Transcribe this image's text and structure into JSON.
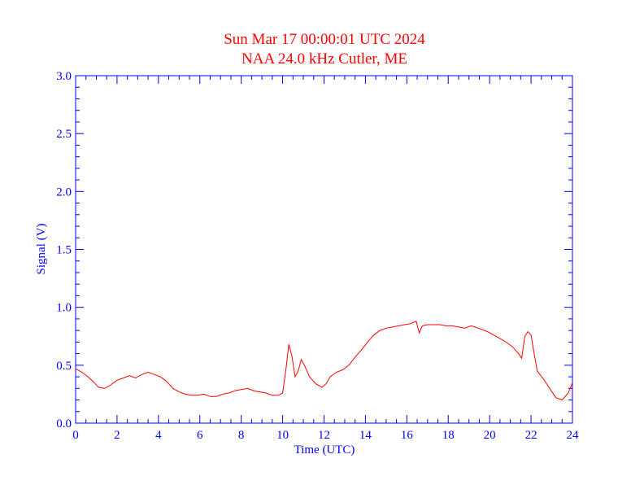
{
  "chart_data": {
    "type": "line",
    "title": "Sun Mar 17 00:00:01 UTC 2024",
    "subtitle": "NAA 24.0 kHz Cutler, ME",
    "xlabel": "Time (UTC)",
    "ylabel": "Signal (V)",
    "xlim": [
      0,
      24
    ],
    "ylim": [
      0,
      3.0
    ],
    "x_ticks": [
      0,
      2,
      4,
      6,
      8,
      10,
      12,
      14,
      16,
      18,
      20,
      22,
      24
    ],
    "x_tick_labels": [
      "0",
      "2",
      "4",
      "6",
      "8",
      "10",
      "12",
      "14",
      "16",
      "18",
      "20",
      "22",
      "24"
    ],
    "y_ticks": [
      0,
      0.5,
      1.0,
      1.5,
      2.0,
      2.5,
      3.0
    ],
    "y_tick_labels": [
      "0.0",
      "0.5",
      "1.0",
      "1.5",
      "2.0",
      "2.5",
      "3.0"
    ],
    "grid": false,
    "colors": {
      "axis": "#0000ff",
      "title": "#ff0000",
      "series": "#ff0000"
    },
    "series": [
      {
        "x": [
          0.0,
          0.3,
          0.6,
          0.9,
          1.1,
          1.4,
          1.7,
          2.0,
          2.3,
          2.6,
          2.9,
          3.2,
          3.5,
          3.8,
          4.1,
          4.4,
          4.7,
          5.0,
          5.3,
          5.6,
          5.9,
          6.2,
          6.5,
          6.8,
          7.1,
          7.4,
          7.7,
          8.0,
          8.3,
          8.6,
          8.9,
          9.2,
          9.5,
          9.8,
          10.0,
          10.15,
          10.3,
          10.45,
          10.6,
          10.75,
          10.9,
          11.05,
          11.3,
          11.6,
          11.9,
          12.1,
          12.3,
          12.6,
          12.9,
          13.2,
          13.5,
          13.8,
          14.1,
          14.4,
          14.7,
          15.0,
          15.3,
          15.6,
          15.9,
          16.2,
          16.45,
          16.6,
          16.75,
          17.0,
          17.3,
          17.6,
          17.9,
          18.2,
          18.5,
          18.8,
          19.1,
          19.3,
          19.6,
          19.9,
          20.2,
          20.5,
          20.8,
          21.1,
          21.4,
          21.55,
          21.7,
          21.85,
          22.0,
          22.15,
          22.3,
          22.6,
          22.9,
          23.2,
          23.5,
          23.8,
          24.0
        ],
        "values": [
          0.47,
          0.44,
          0.4,
          0.35,
          0.31,
          0.3,
          0.33,
          0.37,
          0.39,
          0.41,
          0.39,
          0.42,
          0.44,
          0.42,
          0.4,
          0.36,
          0.3,
          0.27,
          0.25,
          0.24,
          0.24,
          0.25,
          0.23,
          0.23,
          0.25,
          0.26,
          0.28,
          0.29,
          0.3,
          0.28,
          0.27,
          0.26,
          0.24,
          0.24,
          0.26,
          0.45,
          0.68,
          0.58,
          0.4,
          0.45,
          0.55,
          0.5,
          0.4,
          0.34,
          0.31,
          0.34,
          0.4,
          0.44,
          0.46,
          0.5,
          0.57,
          0.63,
          0.7,
          0.76,
          0.8,
          0.82,
          0.83,
          0.84,
          0.85,
          0.86,
          0.88,
          0.78,
          0.84,
          0.85,
          0.85,
          0.85,
          0.84,
          0.84,
          0.83,
          0.82,
          0.84,
          0.83,
          0.81,
          0.79,
          0.76,
          0.73,
          0.7,
          0.66,
          0.6,
          0.56,
          0.75,
          0.79,
          0.76,
          0.6,
          0.45,
          0.38,
          0.3,
          0.22,
          0.2,
          0.26,
          0.35
        ]
      }
    ]
  }
}
